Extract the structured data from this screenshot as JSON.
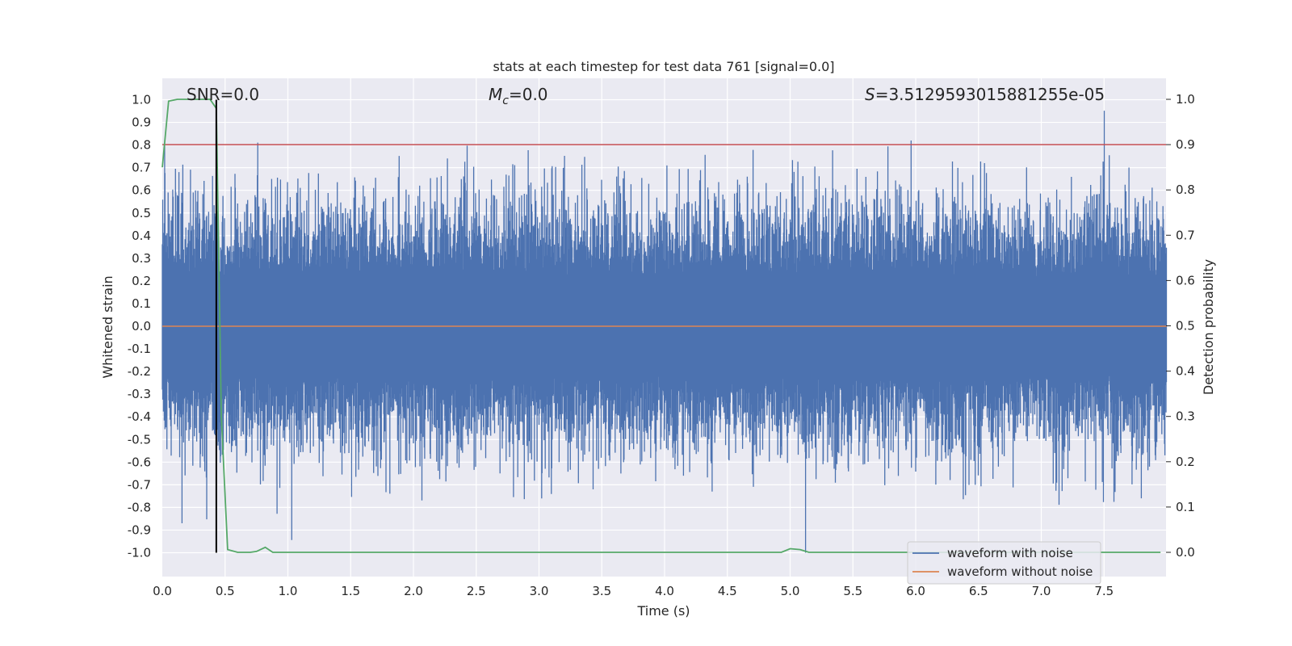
{
  "chart_data": {
    "type": "line",
    "title": "stats at each timestep for test data 761 [signal=0.0]",
    "xlabel": "Time (s)",
    "ylabel_left": "Whitened strain",
    "ylabel_right": "Detection probability",
    "xlim": [
      0.0,
      8.0
    ],
    "ylim_left": [
      -1.1,
      1.1
    ],
    "ylim_right": [
      -0.05,
      1.05
    ],
    "x_ticks": [
      "0.0",
      "0.5",
      "1.0",
      "1.5",
      "2.0",
      "2.5",
      "3.0",
      "3.5",
      "4.0",
      "4.5",
      "5.0",
      "5.5",
      "6.0",
      "6.5",
      "7.0",
      "7.5"
    ],
    "y_left_ticks": [
      "1.0",
      "0.9",
      "0.8",
      "0.7",
      "0.6",
      "0.5",
      "0.4",
      "0.3",
      "0.2",
      "0.1",
      "0.0",
      "-0.1",
      "-0.2",
      "-0.3",
      "-0.4",
      "-0.5",
      "-0.6",
      "-0.7",
      "-0.8",
      "-0.9",
      "-1.0"
    ],
    "y_right_ticks": [
      "1.0",
      "0.9",
      "0.8",
      "0.7",
      "0.6",
      "0.5",
      "0.4",
      "0.3",
      "0.2",
      "0.1",
      "0.0"
    ],
    "grid": true,
    "annotations": {
      "snr": "SNR=0.0",
      "mc_symbol": "M",
      "mc_sub": "c",
      "mc_value": "=0.0",
      "s_symbol": "S",
      "s_value": "=3.5129593015881255e-05"
    },
    "legend": {
      "position": "lower right",
      "entries": [
        "waveform with noise",
        "waveform without noise"
      ]
    },
    "threshold": {
      "y_right": 0.9,
      "color": "#c44e52"
    },
    "marker_line": {
      "x": 0.43,
      "y_left_range": [
        -1.0,
        1.0
      ],
      "color": "#000000"
    },
    "series": [
      {
        "name": "waveform with noise",
        "axis": "left",
        "color": "#4c72b0",
        "description": "dense noise band",
        "typical_range": [
          -0.45,
          0.45
        ],
        "peak_range": [
          -1.0,
          1.0
        ]
      },
      {
        "name": "waveform without noise",
        "axis": "left",
        "color": "#dd8452",
        "x": [
          0.0,
          8.0
        ],
        "y": [
          0.0,
          0.0
        ]
      },
      {
        "axis": "right",
        "color": "#55a868",
        "x": [
          0.0,
          0.05,
          0.12,
          0.2,
          0.3,
          0.38,
          0.43,
          0.47,
          0.52,
          0.6,
          0.7,
          0.75,
          0.82,
          0.88,
          1.0,
          2.0,
          3.0,
          4.0,
          4.93,
          5.0,
          5.08,
          5.15,
          6.0,
          7.0,
          7.95
        ],
        "y": [
          0.85,
          0.996,
          1.0,
          1.0,
          1.0,
          1.0,
          0.98,
          0.3,
          0.006,
          0.0,
          0.0,
          0.002,
          0.011,
          0.0,
          0.0,
          0.0,
          0.0,
          0.0,
          0.0,
          0.008,
          0.006,
          0.0,
          0.0,
          0.0,
          0.0
        ]
      }
    ]
  }
}
